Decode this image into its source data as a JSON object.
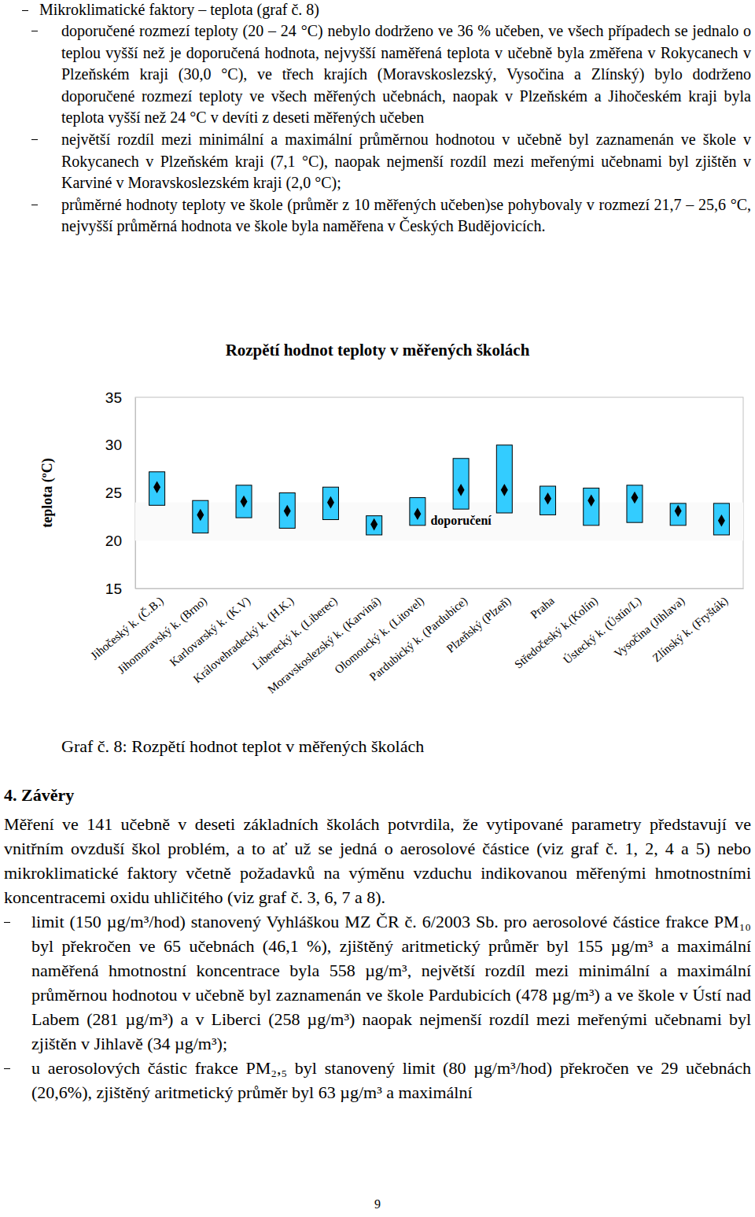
{
  "heading_line": "Mikroklimatické faktory – teplota (graf č. 8)",
  "bullets_top": [
    "doporučené rozmezí teploty (20 – 24 °C) nebylo dodrženo ve 36 % učeben, ve všech případech se jednalo o teplou vyšší než je doporučená hodnota, nejvyšší naměřená teplota v učebně byla změřena v Rokycanech v Plzeňském kraji (30,0 °C), ve třech krajích (Moravskoslezský, Vysočina a Zlínský) bylo dodrženo doporučené rozmezí teploty ve všech měřených učebnách, naopak v Plzeňském a Jihočeském kraji byla teplota vyšší než 24 °C v devíti z deseti měřených učeben",
    "největší rozdíl mezi minimální a maximální průměrnou hodnotou v učebně byl zaznamenán ve škole v Rokycanech v Plzeňském kraji (7,1 °C), naopak nejmenší rozdíl mezi meřenými učebnami byl zjištěn v Karviné v Moravskoslezském kraji (2,0 °C);",
    "průměrné hodnoty teploty ve škole (průměr z 10 měřených učeben)se pohybovaly v rozmezí 21,7 – 25,6 °C, nejvyšší průměrná hodnota ve škole byla naměřena v Českých Budějovicích."
  ],
  "chart_data": {
    "type": "range",
    "title": "Rozpětí hodnot teploty v měřených školách",
    "y_label": "teplota (ºC)",
    "categories": [
      "Jihočeský k. (Č.B.)",
      "Jihomoravský k. (Brno)",
      "Karlovarský k. (K.V)",
      "Královehradecký k. (H.K.)",
      "Liberecký k. (Liberec)",
      "Moravskoslezský k. (Karviná)",
      "Olomoucký k. (Litovel)",
      "Pardubický k. (Pardubice)",
      "Plzeňský (Plzeň)",
      "Praha",
      "Středočeský k.(Kolín)",
      "Ústecký k. (Ústín/L)",
      "Vysočina (Jihlava)",
      "Zlínský k. (Fryšták)"
    ],
    "low": [
      23.7,
      20.8,
      22.4,
      21.3,
      22.2,
      20.6,
      21.6,
      23.3,
      22.9,
      22.7,
      21.6,
      21.9,
      21.6,
      20.6
    ],
    "high": [
      27.2,
      24.2,
      25.8,
      25.0,
      25.6,
      22.6,
      24.5,
      28.6,
      30.0,
      25.7,
      25.5,
      25.8,
      23.9,
      23.9
    ],
    "values": [
      25.6,
      22.7,
      24.1,
      23.1,
      24.0,
      21.7,
      22.8,
      25.3,
      25.3,
      24.4,
      24.2,
      24.5,
      23.1,
      22.1
    ],
    "color": "#33ccff",
    "marker": "diamond",
    "ylim": [
      15,
      35
    ],
    "yticks": [
      15,
      20,
      25,
      30,
      35
    ],
    "grid": false,
    "annotations": [
      {
        "text": "doporučení",
        "range": [
          20,
          24
        ]
      }
    ]
  },
  "caption": "Graf č. 8: Rozpětí hodnot teplot v měřených školách",
  "section_title": "4. Závěry",
  "conclusions": {
    "paragraph": "Měření ve 141 učebně v deseti základních školách potvrdila, že vytipované parametry představují ve vnitřním ovzduší škol problém, a to ať už se jedná o aerosolové částice (viz graf č. 1, 2, 4 a 5) nebo mikroklimatické faktory včetně požadavků na výměnu vzduchu indikovanou měřenými hmotnostními koncentracemi oxidu uhličitého (viz graf č. 3, 6, 7 a 8).",
    "bullets": [
      "limit (150 µg/m³/hod) stanovený Vyhláškou MZ ČR č. 6/2003 Sb. pro aerosolové částice frakce PM₁₀ byl překročen ve 65 učebnách (46,1 %), zjištěný aritmetický průměr byl 155 µg/m³ a maximální naměřená hmotnostní koncentrace byla 558 µg/m³, největší rozdíl mezi minimální a maximální průměrnou hodnotou v učebně byl zaznamenán ve škole Pardubicích (478 µg/m³) a ve škole v Ústí nad Labem (281 µg/m³) a v Liberci (258 µg/m³) naopak nejmenší rozdíl mezi meřenými učebnami byl zjištěn v Jihlavě (34 µg/m³);",
      "u aerosolových částic frakce PM₂,₅ byl stanovený limit (80 µg/m³/hod) překročen ve 29 učebnách (20,6%), zjištěný aritmetický průměr byl 63 µg/m³ a maximální"
    ]
  },
  "page_number": "9"
}
